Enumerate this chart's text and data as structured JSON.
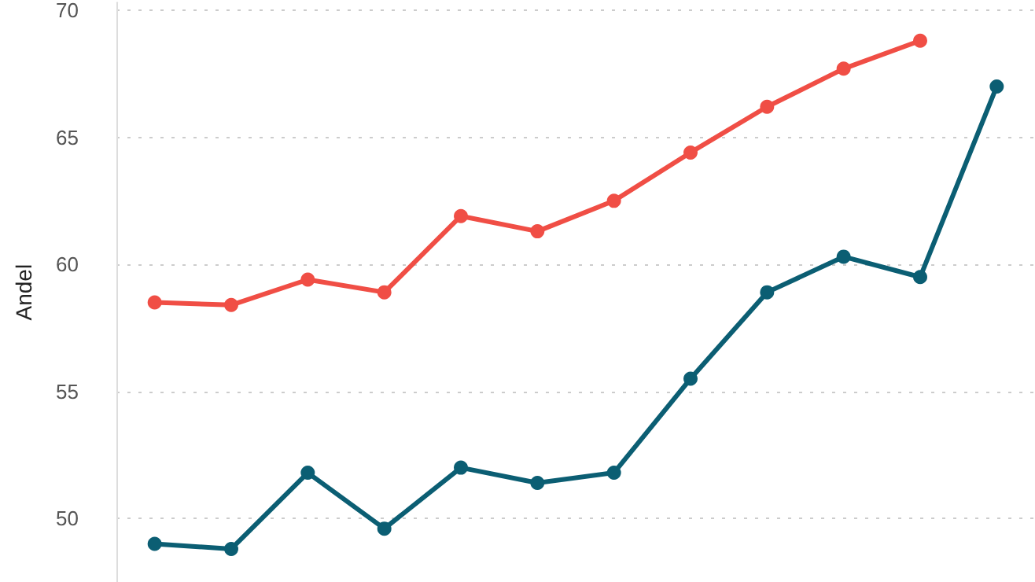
{
  "chart_data": {
    "type": "line",
    "ylabel": "Andel",
    "categories": [
      null,
      null,
      null,
      null,
      null,
      null,
      null,
      null,
      null,
      null,
      null,
      null
    ],
    "series": [
      {
        "color": "#f04e45",
        "values": [
          58.5,
          58.4,
          59.4,
          58.9,
          61.9,
          61.3,
          62.5,
          64.4,
          66.2,
          67.7,
          68.8,
          null
        ]
      },
      {
        "color": "#0b5e73",
        "values": [
          49.0,
          48.8,
          51.8,
          49.6,
          52.0,
          51.4,
          51.8,
          55.5,
          58.9,
          60.3,
          59.5,
          67.0
        ]
      }
    ],
    "ylim": [
      47.5,
      70.3
    ],
    "yticks": [
      50,
      55,
      60,
      65,
      70
    ],
    "grid": "y",
    "tick_labels": "y",
    "marker": "circle",
    "line_style": "solid"
  }
}
